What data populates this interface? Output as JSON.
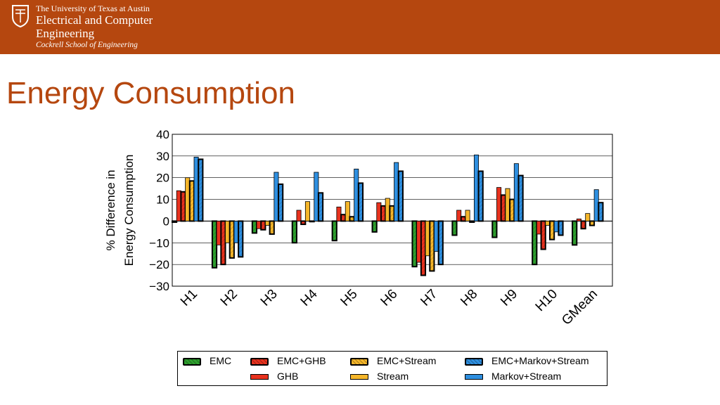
{
  "header": {
    "university": "The University of Texas at Austin",
    "department_line1": "Electrical and Computer",
    "department_line2": "Engineering",
    "school": "Cockrell School of Engineering",
    "background_color": "#b5470f"
  },
  "slide": {
    "title": "Energy Consumption",
    "title_color": "#b5470f"
  },
  "chart_data": {
    "type": "bar",
    "xlabel": "",
    "ylabel_line1": "% Difference in",
    "ylabel_line2": "Energy Consumption",
    "ylim": [
      -30,
      40
    ],
    "yticks": [
      40,
      30,
      20,
      10,
      0,
      -10,
      -20,
      -30
    ],
    "ytick_labels": [
      "40",
      "30",
      "20",
      "10",
      "0",
      "−10",
      "−20",
      "−30"
    ],
    "grid": true,
    "legend_position": "bottom",
    "categories": [
      "H1",
      "H2",
      "H3",
      "H4",
      "H5",
      "H6",
      "H7",
      "H8",
      "H9",
      "H10",
      "GMean"
    ],
    "series": [
      {
        "name": "EMC",
        "color": "#2ea02e",
        "hatched": true,
        "values": [
          -0.5,
          -21.5,
          -5.5,
          -10,
          -9,
          -5,
          -21,
          -6.5,
          -7.5,
          -20,
          -11
        ]
      },
      {
        "name": "GHB",
        "color": "#e8321e",
        "hatched": false,
        "values": [
          14,
          -11,
          -3.5,
          5,
          6.5,
          8.5,
          -19,
          5,
          15.5,
          -6,
          1
        ]
      },
      {
        "name": "EMC+GHB",
        "color": "#e8321e",
        "hatched": true,
        "values": [
          13.5,
          -20,
          -4,
          -1.5,
          3,
          7,
          -25,
          2,
          12,
          -13,
          -3.5
        ]
      },
      {
        "name": "Stream",
        "color": "#f5b62a",
        "hatched": false,
        "values": [
          20,
          -10,
          -2,
          9,
          9,
          10.5,
          -16,
          5,
          15,
          -2,
          3.5
        ]
      },
      {
        "name": "EMC+Stream",
        "color": "#f5b62a",
        "hatched": true,
        "values": [
          18.5,
          -17,
          -6,
          0,
          2,
          7,
          -23,
          -0.5,
          10,
          -8.5,
          -2
        ]
      },
      {
        "name": "Markov+Stream",
        "color": "#2e8fe0",
        "hatched": false,
        "values": [
          29.5,
          -10,
          22.5,
          22.5,
          24,
          27,
          -14,
          30.5,
          26.5,
          -5,
          14.5
        ]
      },
      {
        "name": "EMC+Markov+Stream",
        "color": "#2e8fe0",
        "hatched": true,
        "values": [
          28.5,
          -16.5,
          17,
          13,
          17.5,
          23,
          -20,
          23,
          21,
          -6.5,
          8.5
        ]
      }
    ]
  },
  "legend": {
    "items": [
      {
        "label": "EMC",
        "series": 0
      },
      {
        "label": "EMC+GHB",
        "series": 2
      },
      {
        "label": "GHB",
        "series": 1
      },
      {
        "label": "EMC+Stream",
        "series": 4
      },
      {
        "label": "Stream",
        "series": 3
      },
      {
        "label": "EMC+Markov+Stream",
        "series": 6
      },
      {
        "label": "Markov+Stream",
        "series": 5
      }
    ]
  }
}
